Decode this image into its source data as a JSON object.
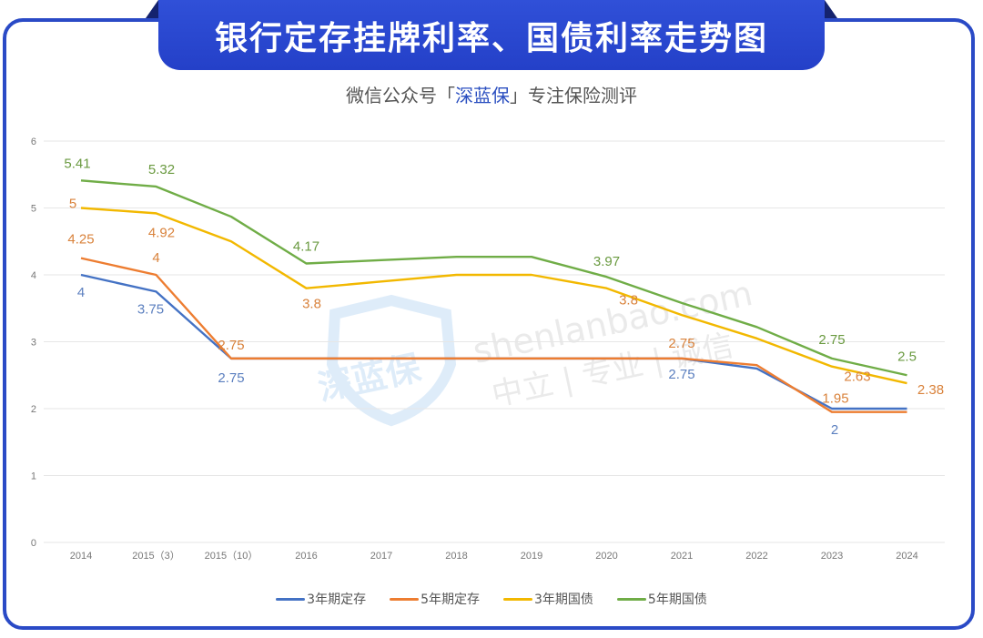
{
  "header": {
    "title": "银行定存挂牌利率、国债利率走势图",
    "subtitle_prefix": "微信公众号「",
    "subtitle_brand": "深蓝保",
    "subtitle_suffix": "」专注保险测评"
  },
  "watermark": {
    "logo_text": "深蓝保",
    "domain": "shenlanbao.com",
    "slogan": "中立 | 专业 | 诚信"
  },
  "colors": {
    "frame": "#2a4ac6",
    "title_bg": "#2a46cf",
    "series_3y_deposit": "#4472c4",
    "series_5y_deposit": "#ed7d31",
    "series_3y_bond": "#f2b800",
    "series_5y_bond": "#70ad47",
    "label_orange": "#d9823b",
    "label_blue": "#5b7fbf",
    "label_green": "#6a9a40"
  },
  "chart_data": {
    "type": "line",
    "title": "银行定存挂牌利率、国债利率走势图",
    "subtitle": "微信公众号「深蓝保」专注保险测评",
    "xlabel": "",
    "ylabel": "",
    "ylim": [
      0,
      6
    ],
    "yticks": [
      "0",
      "1",
      "2",
      "3",
      "4",
      "5",
      "6"
    ],
    "grid": true,
    "legend_position": "bottom",
    "categories": [
      "2014",
      "2015（3）",
      "2015（10）",
      "2016",
      "2017",
      "2018",
      "2019",
      "2020",
      "2021",
      "2022",
      "2023",
      "2024"
    ],
    "series": [
      {
        "name": "3年期定存",
        "color": "#4472c4",
        "values": [
          4,
          3.75,
          2.75,
          2.75,
          2.75,
          2.75,
          2.75,
          2.75,
          2.75,
          2.6,
          2,
          2
        ],
        "labels": {
          "0": "4",
          "1": "3.75",
          "2": "2.75",
          "8": "2.75",
          "10": "2"
        }
      },
      {
        "name": "5年期定存",
        "color": "#ed7d31",
        "values": [
          4.25,
          4,
          2.75,
          2.75,
          2.75,
          2.75,
          2.75,
          2.75,
          2.75,
          2.65,
          1.95,
          1.95
        ],
        "labels": {
          "0": "4.25",
          "1": "4",
          "2": "2.75",
          "8": "2.75",
          "10": "1.95"
        }
      },
      {
        "name": "3年期国债",
        "color": "#f2b800",
        "values": [
          5,
          4.92,
          4.5,
          3.8,
          3.9,
          4,
          4,
          3.8,
          3.4,
          3.05,
          2.63,
          2.38
        ],
        "labels": {
          "0": "5",
          "1": "4.92",
          "3": "3.8",
          "7": "3.8",
          "10": "2.63",
          "11": "2.38"
        }
      },
      {
        "name": "5年期国债",
        "color": "#70ad47",
        "values": [
          5.41,
          5.32,
          4.87,
          4.17,
          4.22,
          4.27,
          4.27,
          3.97,
          3.58,
          3.22,
          2.75,
          2.5
        ],
        "labels": {
          "0": "5.41",
          "1": "5.32",
          "3": "4.17",
          "7": "3.97",
          "10": "2.75",
          "11": "2.5"
        }
      }
    ]
  },
  "legend": [
    {
      "label": "3年期定存",
      "color": "#4472c4"
    },
    {
      "label": "5年期定存",
      "color": "#ed7d31"
    },
    {
      "label": "3年期国债",
      "color": "#f2b800"
    },
    {
      "label": "5年期国债",
      "color": "#70ad47"
    }
  ]
}
